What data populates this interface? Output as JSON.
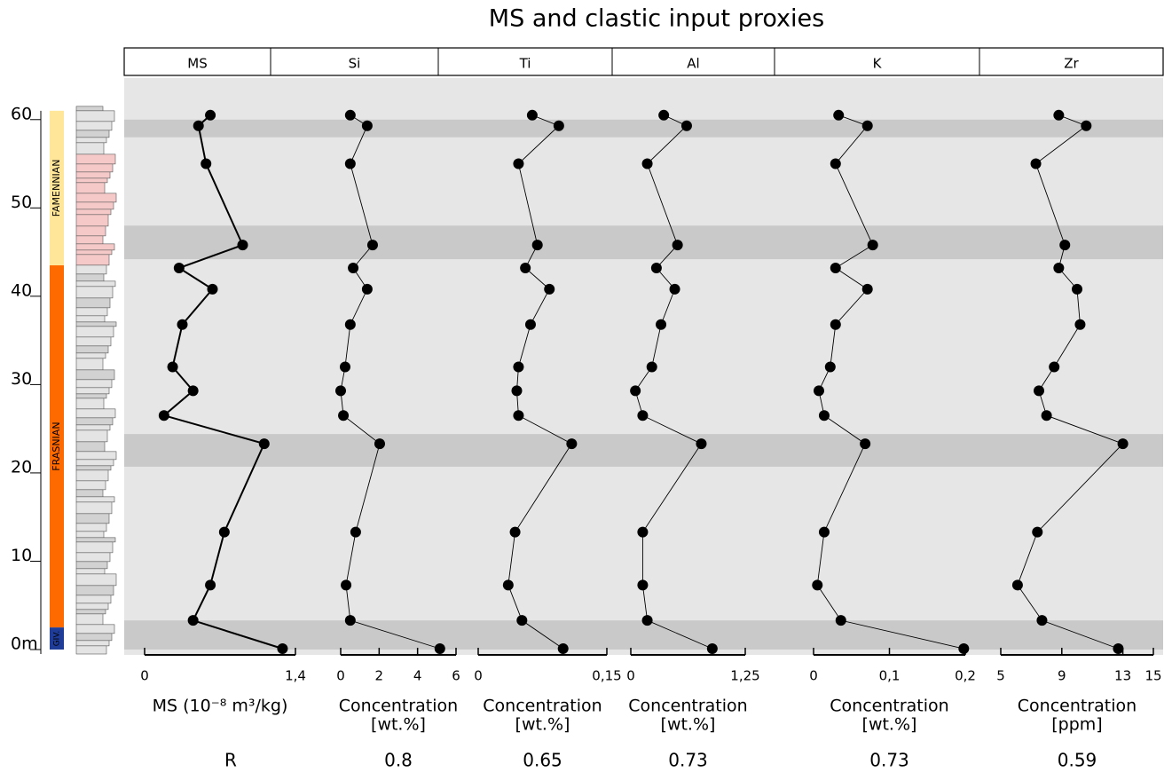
{
  "title": "MS and clastic input proxies",
  "depth_axis": {
    "ylim": [
      0,
      64.7
    ],
    "yticks": [
      {
        "value": 0,
        "label": "0m"
      },
      10,
      20,
      30,
      40,
      50,
      60
    ]
  },
  "stages": [
    {
      "name": "FAMENNIAN",
      "range": [
        43.5,
        61
      ],
      "color": "#ffe699"
    },
    {
      "name": "FRASNIAN",
      "range": [
        2.5,
        43.5
      ],
      "color": "#ff6a00"
    },
    {
      "name": "GIV.",
      "range": [
        0,
        2.5
      ],
      "color": "#1f3c99"
    }
  ],
  "bands": [
    [
      58,
      60
    ],
    [
      44.2,
      48
    ],
    [
      20.7,
      24.4
    ],
    [
      0,
      3.3
    ]
  ],
  "r_label": "R",
  "chart_data": [
    {
      "type": "line",
      "header": "MS",
      "color": "#000000",
      "x_label": [
        "MS (10⁻⁸ m³/kg)"
      ],
      "xlim": [
        0,
        1.4
      ],
      "xticks": [
        0,
        {
          "value": 1.4,
          "label": "1,4"
        }
      ],
      "x": [
        0.61,
        0.5,
        0.57,
        0.91,
        0.32,
        0.63,
        0.35,
        0.26,
        0.45,
        0.18,
        1.11,
        0.74,
        0.61,
        0.45,
        1.28
      ],
      "y": [
        60.5,
        59.3,
        55,
        45.8,
        43.2,
        40.8,
        36.8,
        32,
        29.3,
        26.5,
        23.3,
        13.3,
        7.3,
        3.3,
        0.1
      ]
    },
    {
      "type": "line",
      "header": "Si",
      "color": "#000000",
      "x_label": [
        "Concentration",
        "[wt.%]"
      ],
      "xlim": [
        0,
        6
      ],
      "xticks": [
        0,
        2,
        4,
        6
      ],
      "r": 0.8,
      "x": [
        0.5,
        1.38,
        0.5,
        1.66,
        0.65,
        1.38,
        0.5,
        0.23,
        0,
        0.14,
        2.03,
        0.78,
        0.28,
        0.5,
        5.16
      ],
      "y": [
        60.5,
        59.3,
        55,
        45.8,
        43.2,
        40.8,
        36.8,
        32,
        29.3,
        26.5,
        23.3,
        13.3,
        7.3,
        3.3,
        0.1
      ]
    },
    {
      "type": "line",
      "header": "Ti",
      "color": "#000000",
      "x_label": [
        "Concentration",
        "[wt.%]"
      ],
      "xlim": [
        0,
        0.15
      ],
      "xticks": [
        0,
        {
          "value": 0.15,
          "label": "0,15"
        }
      ],
      "r": 0.65,
      "x": [
        0.063,
        0.094,
        0.047,
        0.069,
        0.055,
        0.083,
        0.061,
        0.047,
        0.045,
        0.047,
        0.109,
        0.043,
        0.035,
        0.051,
        0.099
      ],
      "y": [
        60.5,
        59.3,
        55,
        45.8,
        43.2,
        40.8,
        36.8,
        32,
        29.3,
        26.5,
        23.3,
        13.3,
        7.3,
        3.3,
        0.1
      ]
    },
    {
      "type": "line",
      "header": "Al",
      "color": "#000000",
      "x_label": [
        "Concentration",
        "[wt.%]"
      ],
      "xlim": [
        0,
        1.25
      ],
      "xticks": [
        0,
        {
          "value": 1.25,
          "label": "1,25"
        }
      ],
      "r": 0.73,
      "x": [
        0.36,
        0.61,
        0.18,
        0.51,
        0.28,
        0.48,
        0.33,
        0.23,
        0.05,
        0.13,
        0.77,
        0.13,
        0.13,
        0.18,
        0.89
      ],
      "y": [
        60.5,
        59.3,
        55,
        45.8,
        43.2,
        40.8,
        36.8,
        32,
        29.3,
        26.5,
        23.3,
        13.3,
        7.3,
        3.3,
        0.1
      ]
    },
    {
      "type": "line",
      "header": "K",
      "color": "#000000",
      "x_label": [
        "Concentration",
        "[wt.%]"
      ],
      "xlim": [
        0,
        0.2
      ],
      "xticks": [
        0,
        {
          "value": 0.1,
          "label": "0,1"
        },
        {
          "value": 0.2,
          "label": "0,2"
        }
      ],
      "r": 0.73,
      "x": [
        0.033,
        0.071,
        0.029,
        0.078,
        0.029,
        0.071,
        0.029,
        0.022,
        0.007,
        0.014,
        0.068,
        0.014,
        0.005,
        0.036,
        0.198
      ],
      "y": [
        60.5,
        59.3,
        55,
        45.8,
        43.2,
        40.8,
        36.8,
        32,
        29.3,
        26.5,
        23.3,
        13.3,
        7.3,
        3.3,
        0.1
      ]
    },
    {
      "type": "line",
      "header": "Zr",
      "color": "#000000",
      "x_label": [
        "Concentration",
        "[ppm]"
      ],
      "xlim": [
        5,
        15
      ],
      "xticks": [
        5,
        9,
        13,
        15
      ],
      "r": 0.59,
      "x": [
        8.8,
        10.6,
        7.3,
        9.2,
        8.8,
        10.0,
        10.2,
        8.5,
        7.5,
        8.0,
        13.0,
        7.4,
        6.1,
        7.7,
        12.7
      ],
      "y": [
        60.5,
        59.3,
        55,
        45.8,
        43.2,
        40.8,
        36.8,
        32,
        29.3,
        26.5,
        23.3,
        13.3,
        7.3,
        3.3,
        0.1
      ]
    }
  ]
}
